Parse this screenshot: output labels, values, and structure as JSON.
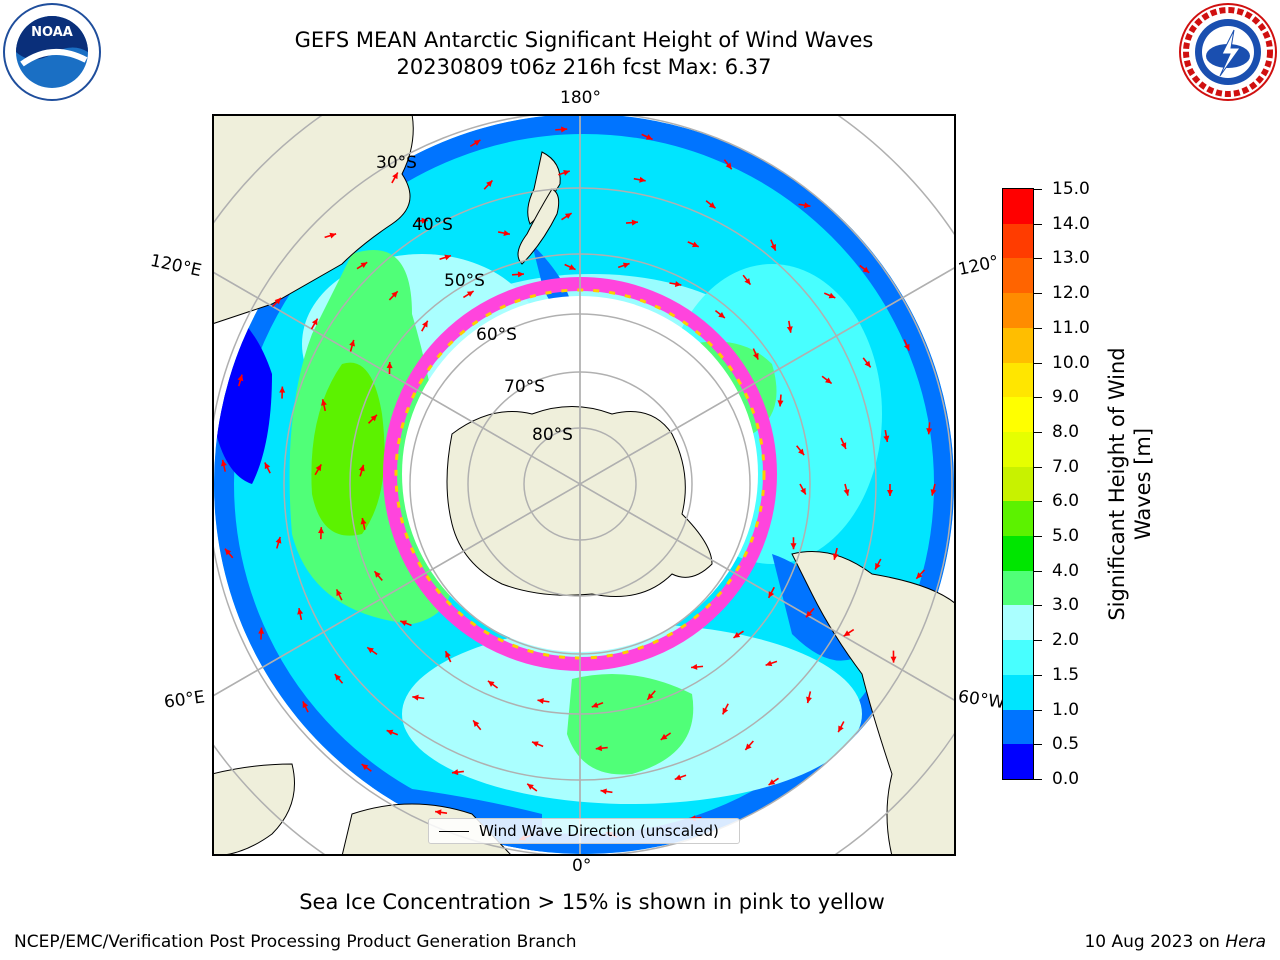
{
  "header": {
    "title_line1": "GEFS MEAN Antarctic Significant Height of Wind Waves",
    "title_line2": "20230809 t06z 216h fcst   Max: 6.37"
  },
  "logos": {
    "left": "noaa-logo",
    "right": "nws-logo"
  },
  "map": {
    "projection": "south-polar-stereographic",
    "lon_labels": {
      "top": "180°",
      "bottom": "0°",
      "left_upper": "120°E",
      "left_lower": "60°E",
      "right_upper": "120°",
      "right_lower": "60°W"
    },
    "lat_labels": [
      "30°S",
      "40°S",
      "50°S",
      "60°S",
      "70°S",
      "80°S"
    ],
    "colors": {
      "land": "#efefdb",
      "ice_edge": "#ff44dd",
      "arrow": "#ff0000"
    },
    "legend_label": "Wind Wave Direction (unscaled)"
  },
  "colorbar": {
    "title_line1": "Significant Height of Wind",
    "title_line2": "Waves [m]",
    "ticks": [
      "0.0",
      "0.5",
      "1.0",
      "1.5",
      "2.0",
      "3.0",
      "4.0",
      "5.0",
      "6.0",
      "7.0",
      "8.0",
      "9.0",
      "10.0",
      "11.0",
      "12.0",
      "13.0",
      "14.0",
      "15.0"
    ],
    "colors": [
      "#0000ff",
      "#0074ff",
      "#00e5ff",
      "#48ffff",
      "#aaffff",
      "#50ff78",
      "#00e600",
      "#5cf200",
      "#c8f200",
      "#e6ff00",
      "#ffff00",
      "#ffe600",
      "#ffbe00",
      "#ff8c00",
      "#ff6400",
      "#ff3c00",
      "#ff0000"
    ]
  },
  "footer": {
    "note": "Sea Ice Concentration > 15% is shown in pink to yellow",
    "credit_left": "NCEP/EMC/Verification Post Processing Product Generation Branch",
    "credit_right_prefix": "10 Aug 2023 on ",
    "credit_right_host": "Hera"
  }
}
